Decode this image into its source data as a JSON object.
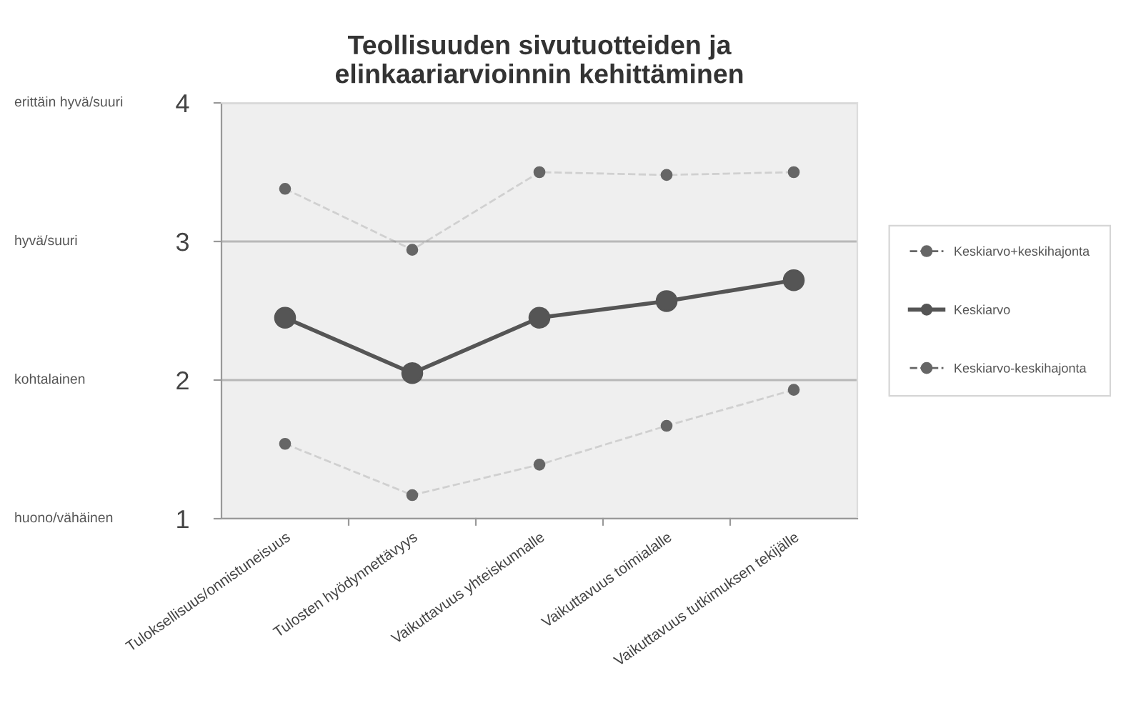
{
  "chart_data": {
    "type": "line",
    "title": "Teollisuuden sivutuotteiden ja\nelinkaariarvioinnin kehittäminen",
    "categories": [
      "Tuloksellisuus/onnistuneisuus",
      "Tulosten hyödynnettävyys",
      "Vaikuttavuus yhteiskunnalle",
      "Vaikuttavuus toimialalle",
      "Vaikuttavuus tutkimuksen tekijälle"
    ],
    "series": [
      {
        "name": "Keskiarvo+keskihajonta",
        "color": "#666666",
        "values": [
          3.38,
          2.94,
          3.5,
          3.48,
          3.5
        ],
        "marker": "circle",
        "line_style": "dashed"
      },
      {
        "name": "Keskiarvo",
        "color": "#555555",
        "values": [
          2.45,
          2.05,
          2.45,
          2.57,
          2.72
        ],
        "marker": "circle",
        "line_style": "solid"
      },
      {
        "name": "Keskiarvo-keskihajonta",
        "color": "#666666",
        "values": [
          1.54,
          1.17,
          1.39,
          1.67,
          1.93
        ],
        "marker": "circle",
        "line_style": "dashed"
      }
    ],
    "ylim": [
      1,
      4
    ],
    "yticks": [
      1,
      2,
      3,
      4
    ],
    "annotations": [
      "huono/vähäinen",
      "kohtalainen",
      "hyvä/suuri",
      "erittäin hyvä/suuri"
    ],
    "grid": "y",
    "legend": "right"
  }
}
